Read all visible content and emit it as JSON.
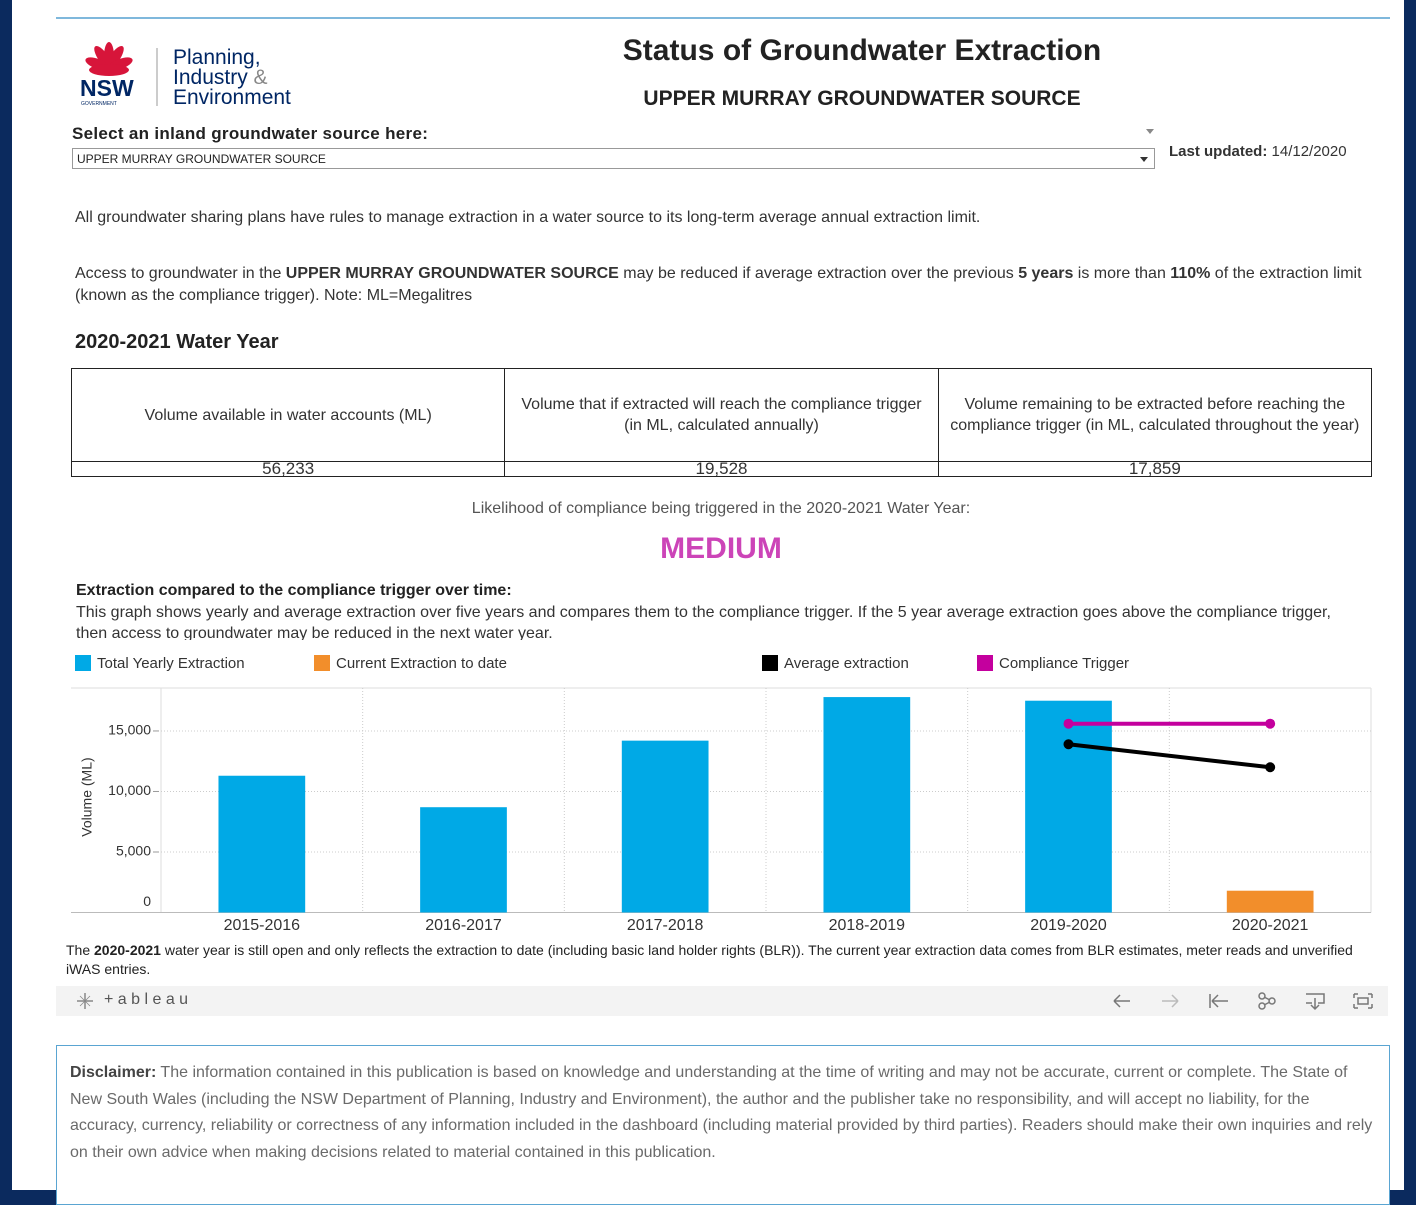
{
  "logo": {
    "brand": "NSW",
    "government": "GOVERNMENT",
    "lines": [
      "Planning,",
      "Industry",
      "&",
      "Environment"
    ]
  },
  "header": {
    "title": "Status of Groundwater Extraction",
    "subtitle": "UPPER MURRAY GROUNDWATER SOURCE"
  },
  "selector": {
    "label": "Select an inland groundwater source here:",
    "value": "UPPER MURRAY GROUNDWATER SOURCE"
  },
  "last_updated": {
    "label": "Last updated:",
    "value": "14/12/2020"
  },
  "intro": "All groundwater sharing plans have rules to manage extraction in a water source to its long-term average annual extraction limit.",
  "access_note": [
    {
      "text": "Access to groundwater in the ",
      "bold": false
    },
    {
      "text": "UPPER MURRAY GROUNDWATER SOURCE",
      "bold": true
    },
    {
      "text": " may be reduced if average extraction over the previous ",
      "bold": false
    },
    {
      "text": "5 years",
      "bold": true
    },
    {
      "text": " is more than ",
      "bold": false
    },
    {
      "text": "110%",
      "bold": true
    },
    {
      "text": " of the extraction limit (known as the compliance trigger). Note: ML=Megalitres",
      "bold": false
    }
  ],
  "section_title": "2020-2021 Water Year",
  "table": {
    "headers": [
      "Volume available in water accounts (ML)",
      "Volume that if extracted will reach the compliance trigger (in ML, calculated annually)",
      "Volume remaining to be extracted before reaching the compliance trigger (in ML, calculated throughout the year)"
    ],
    "rows": [
      [
        "56,233",
        "19,528",
        "17,859"
      ]
    ]
  },
  "likelihood": {
    "label": "Likelihood of compliance being triggered in the 2020-2021 Water Year:",
    "value": "MEDIUM",
    "color": "#cc44b8"
  },
  "chart_heading": "Extraction compared to the compliance trigger over time:",
  "chart_description": "This graph shows yearly and average extraction over five years and compares them to the compliance trigger. If the 5 year average extraction goes above the compliance trigger, then access to groundwater may be reduced in the next water year.",
  "chart_data": {
    "type": "combo",
    "y_label": "Volume (ML)",
    "categories": [
      "2015-2016",
      "2016-2017",
      "2017-2018",
      "2018-2019",
      "2019-2020",
      "2020-2021"
    ],
    "series": [
      {
        "name": "Total Yearly Extraction",
        "type": "bar",
        "color": "#00a9e6",
        "values": [
          11300,
          8700,
          14200,
          17800,
          17500,
          null
        ]
      },
      {
        "name": "Current Extraction to date",
        "type": "bar",
        "color": "#f28e2b",
        "values": [
          null,
          null,
          null,
          null,
          null,
          1800
        ]
      },
      {
        "name": "Average extraction",
        "type": "line",
        "color": "#000000",
        "values": [
          null,
          null,
          null,
          null,
          13900,
          12000
        ]
      },
      {
        "name": "Compliance Trigger",
        "type": "line",
        "color": "#c4009e",
        "values": [
          null,
          null,
          null,
          null,
          15600,
          15600
        ]
      }
    ],
    "ylim": [
      0,
      18550
    ],
    "yticks": [
      0,
      {
        "value": 5000,
        "label": "5,000"
      },
      {
        "value": 10000,
        "label": "10,000"
      },
      {
        "value": 15000,
        "label": "15,000"
      }
    ],
    "grid": true
  },
  "chart_note": [
    {
      "text": "The ",
      "bold": false
    },
    {
      "text": "2020-2021",
      "bold": true
    },
    {
      "text": " water year is still open and only reflects the extraction to date (including basic land holder rights (BLR)). The current year extraction data comes from BLR estimates, meter reads and unverified iWAS entries.",
      "bold": false
    }
  ],
  "toolbar": {
    "brand": "+ a b l e a u"
  },
  "disclaimer": {
    "label": "Disclaimer:",
    "text": " The information contained in this publication is based on knowledge and understanding at the time of writing and may not be accurate, current or complete. The State of New South Wales (including the NSW Department of Planning, Industry and Environment), the author and the publisher take no responsibility, and will accept no liability, for the accuracy, currency, reliability or correctness of any information included in the dashboard (including material provided by third parties). Readers should make their own inquiries and rely on their own advice when making decisions related to material contained in this publication."
  }
}
